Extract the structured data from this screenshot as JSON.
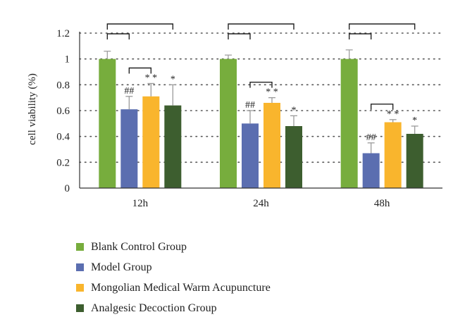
{
  "chart_data": {
    "type": "bar",
    "ylabel": "cell viability (%)",
    "categories": [
      "12h",
      "24h",
      "48h"
    ],
    "ylim": [
      0,
      1.2
    ],
    "yticks": [
      "0",
      "0.2",
      "0.4",
      "0.6",
      "0.8",
      "1",
      "1.2"
    ],
    "grid": "horizontal dotted",
    "legend_placement": "bottom",
    "series": [
      {
        "name": "Blank Control Group",
        "color": "#77ad3d",
        "values": [
          1.0,
          1.0,
          1.0
        ],
        "errors": [
          0.06,
          0.03,
          0.07
        ],
        "marks": [
          "",
          "",
          ""
        ]
      },
      {
        "name": "Model Group",
        "color": "#5b6eb0",
        "values": [
          0.61,
          0.5,
          0.27
        ],
        "errors": [
          0.1,
          0.1,
          0.08
        ],
        "marks": [
          "##",
          "##",
          "##"
        ]
      },
      {
        "name": "Mongolian Medical Warm Acupuncture",
        "color": "#f9b52d",
        "values": [
          0.71,
          0.66,
          0.51
        ],
        "errors": [
          0.1,
          0.04,
          0.02
        ],
        "marks": [
          "* *",
          "* *",
          "* *"
        ]
      },
      {
        "name": "Analgesic Decoction Group",
        "color": "#3d5e2f",
        "values": [
          0.64,
          0.48,
          0.42
        ],
        "errors": [
          0.16,
          0.08,
          0.06
        ],
        "marks": [
          "*",
          "*",
          "*"
        ]
      }
    ]
  }
}
